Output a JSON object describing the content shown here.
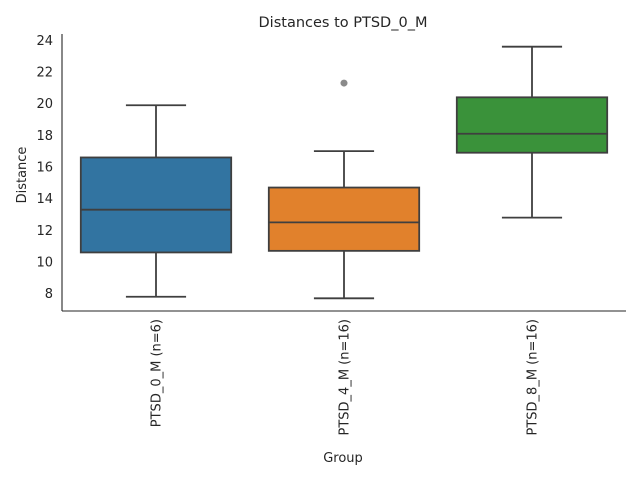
{
  "chart_data": {
    "type": "box",
    "title": "Distances to PTSD_0_M",
    "xlabel": "Group",
    "ylabel": "Distance",
    "ylim": [
      6.9,
      24.4
    ],
    "yticks": [
      8,
      10,
      12,
      14,
      16,
      18,
      20,
      22,
      24
    ],
    "grid": false,
    "categories": [
      "PTSD_0_M (n=6)",
      "PTSD_4_M (n=16)",
      "PTSD_8_M (n=16)"
    ],
    "boxes": [
      {
        "group": "PTSD_0_M (n=6)",
        "whisker_low": 7.8,
        "q1": 10.6,
        "median": 13.3,
        "q3": 16.6,
        "whisker_high": 19.9,
        "outliers": [],
        "color": "#3274a1"
      },
      {
        "group": "PTSD_4_M (n=16)",
        "whisker_low": 7.7,
        "q1": 10.7,
        "median": 12.5,
        "q3": 14.7,
        "whisker_high": 17.0,
        "outliers": [
          21.3
        ],
        "color": "#e1812c"
      },
      {
        "group": "PTSD_8_M (n=16)",
        "whisker_low": 12.8,
        "q1": 16.9,
        "median": 18.1,
        "q3": 20.4,
        "whisker_high": 23.6,
        "outliers": [],
        "color": "#3a923a"
      }
    ],
    "line_color": "#3f3f3f",
    "outlier_color": "#8a8a8a"
  }
}
